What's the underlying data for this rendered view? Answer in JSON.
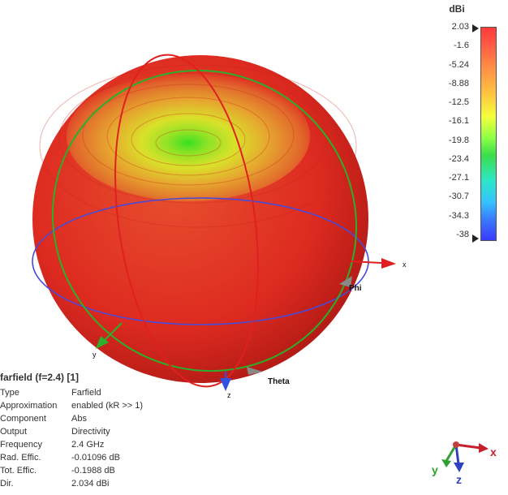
{
  "legend": {
    "unit": "dBi",
    "ticks": [
      "2.03",
      "-1.6",
      "-5.24",
      "-8.88",
      "-12.5",
      "-16.1",
      "-19.8",
      "-23.4",
      "-27.1",
      "-30.7",
      "-34.3",
      "-38"
    ]
  },
  "axes": {
    "x_label": "x",
    "y_label": "y",
    "z_label": "z",
    "phi_label": "Phi",
    "theta_label": "Theta"
  },
  "triad": {
    "x": "x",
    "y": "y",
    "z": "z"
  },
  "info": {
    "title": "farfield (f=2.4) [1]",
    "rows": [
      {
        "key": "Type",
        "value": "Farfield"
      },
      {
        "key": "Approximation",
        "value": "enabled (kR >> 1)"
      },
      {
        "key": "Component",
        "value": "Abs"
      },
      {
        "key": "Output",
        "value": "Directivity"
      },
      {
        "key": "Frequency",
        "value": "2.4 GHz"
      },
      {
        "key": "Rad. Effic.",
        "value": "-0.01096 dB"
      },
      {
        "key": "Tot. Effic.",
        "value": "-0.1988 dB"
      },
      {
        "key": "Dir.",
        "value": "2.034 dBi"
      }
    ]
  },
  "colors": {
    "pattern": "#e53024",
    "phi_circle": "#2bb02b",
    "theta_circle": "#e02020",
    "equator": "#4a4ad8"
  }
}
